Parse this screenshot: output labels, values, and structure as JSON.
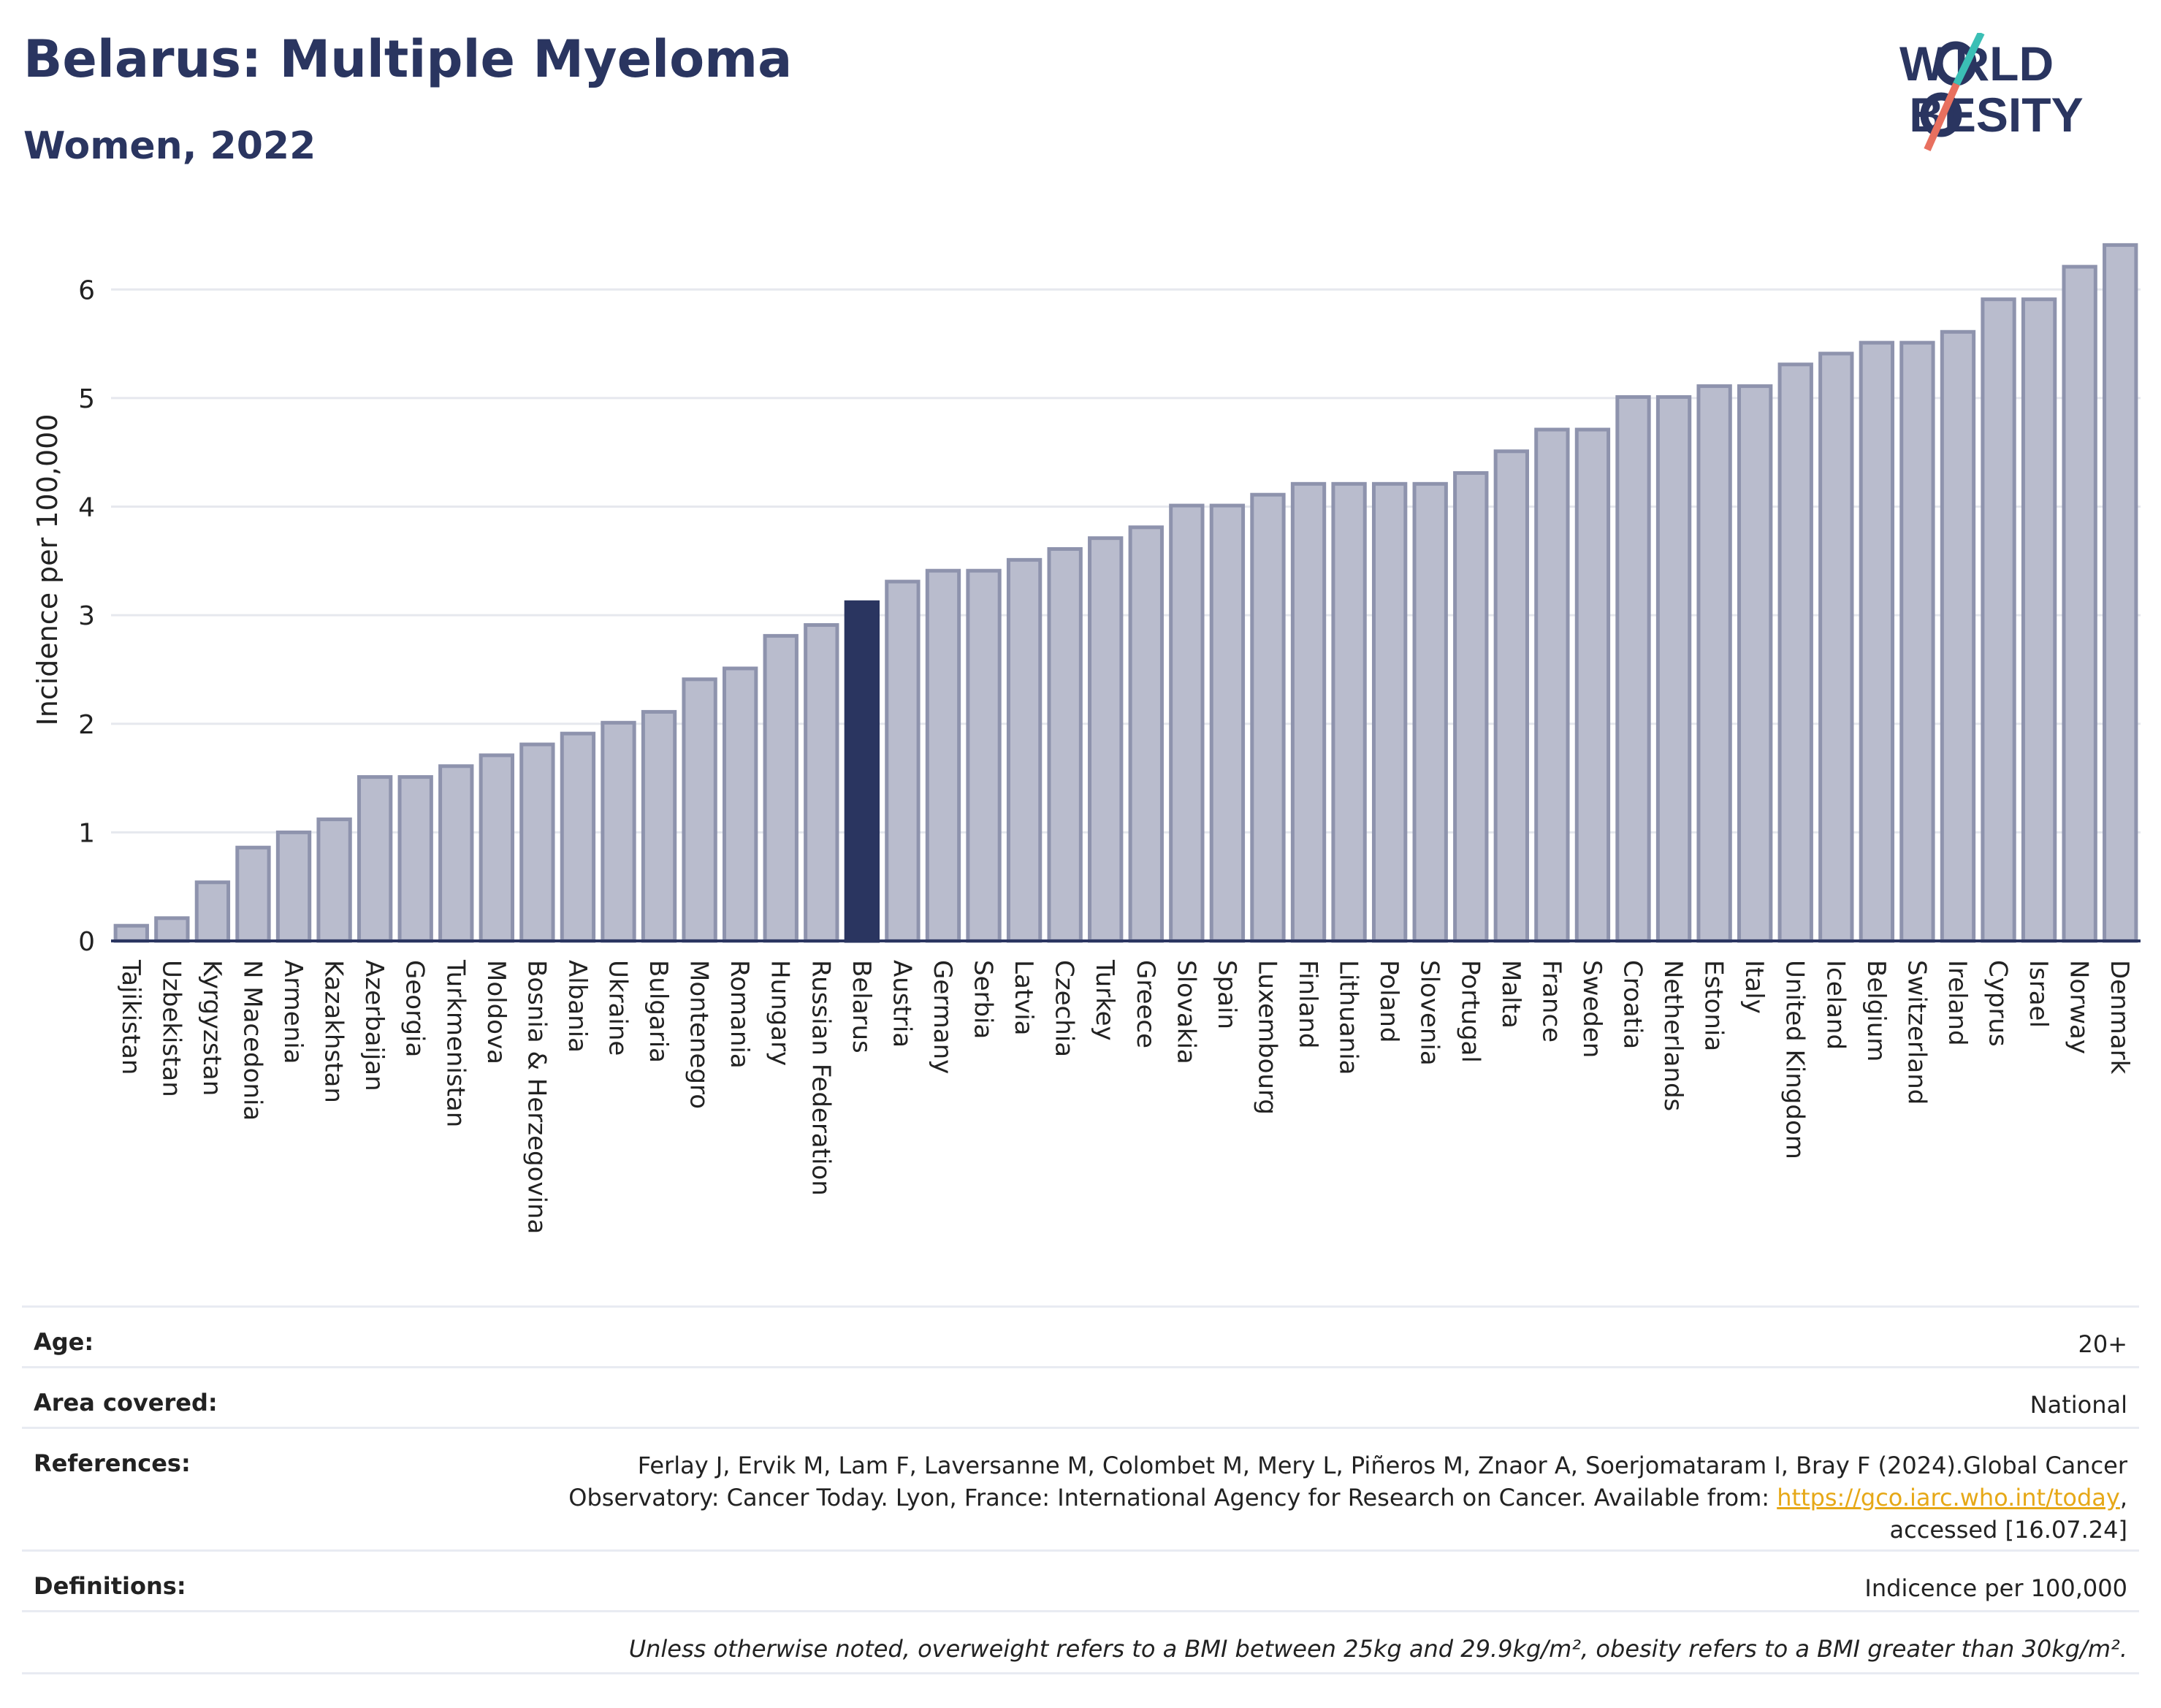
{
  "header": {
    "title": "Belarus: Multiple Myeloma",
    "subtitle": "Women, 2022",
    "logo_top": "W RLD",
    "logo_bottom": " BESITY"
  },
  "colors": {
    "bar": "#b9bccd",
    "bar_stroke": "#8e93ad",
    "highlight": "#2a3560",
    "logo_teal": "#3bbfb5",
    "logo_coral": "#e8705f"
  },
  "chart_data": {
    "type": "bar",
    "ylabel": "Incidence per 100,000",
    "ylim": [
      0,
      6.5
    ],
    "yticks": [
      0,
      1,
      2,
      3,
      4,
      5,
      6
    ],
    "highlight": "Belarus",
    "categories": [
      "Tajikistan",
      "Uzbekistan",
      "Kyrgyzstan",
      "N Macedonia",
      "Armenia",
      "Kazakhstan",
      "Azerbaijan",
      "Georgia",
      "Turkmenistan",
      "Moldova",
      "Bosnia & Herzegovina",
      "Albania",
      "Ukraine",
      "Bulgaria",
      "Montenegro",
      "Romania",
      "Hungary",
      "Russian Federation",
      "Belarus",
      "Austria",
      "Germany",
      "Serbia",
      "Latvia",
      "Czechia",
      "Turkey",
      "Greece",
      "Slovakia",
      "Spain",
      "Luxembourg",
      "Finland",
      "Lithuania",
      "Poland",
      "Slovenia",
      "Portugal",
      "Malta",
      "France",
      "Sweden",
      "Croatia",
      "Netherlands",
      "Estonia",
      "Italy",
      "United Kingdom",
      "Iceland",
      "Belgium",
      "Switzerland",
      "Ireland",
      "Cyprus",
      "Israel",
      "Norway",
      "Denmark"
    ],
    "values": [
      0.14,
      0.21,
      0.54,
      0.86,
      1.0,
      1.12,
      1.51,
      1.51,
      1.61,
      1.71,
      1.81,
      1.91,
      2.01,
      2.11,
      2.41,
      2.51,
      2.81,
      2.91,
      3.12,
      3.31,
      3.41,
      3.41,
      3.51,
      3.61,
      3.71,
      3.81,
      4.01,
      4.01,
      4.11,
      4.21,
      4.21,
      4.21,
      4.21,
      4.31,
      4.51,
      4.71,
      4.71,
      5.01,
      5.01,
      5.11,
      5.11,
      5.31,
      5.41,
      5.51,
      5.51,
      5.61,
      5.91,
      5.91,
      6.21,
      6.41
    ]
  },
  "meta": {
    "age_label": "Age:",
    "age_value": "20+",
    "area_label": "Area covered:",
    "area_value": "National",
    "references_label": "References:",
    "references_line1": "Ferlay J, Ervik M, Lam F, Laversanne M, Colombet M, Mery L, Piñeros M, Znaor A, Soerjomataram I, Bray F (2024).Global Cancer",
    "references_line2_pre": "Observatory: Cancer Today. Lyon, France: International Agency for Research on Cancer. Available from: ",
    "references_link": "https://gco.iarc.who.int/today",
    "references_line2_post": ",",
    "references_line3": "accessed [16.07.24]",
    "definitions_label": "Definitions:",
    "definitions_value": "Indicence per 100,000",
    "note": "Unless otherwise noted, overweight refers to a BMI between 25kg and 29.9kg/m², obesity refers to a BMI greater than 30kg/m²."
  }
}
